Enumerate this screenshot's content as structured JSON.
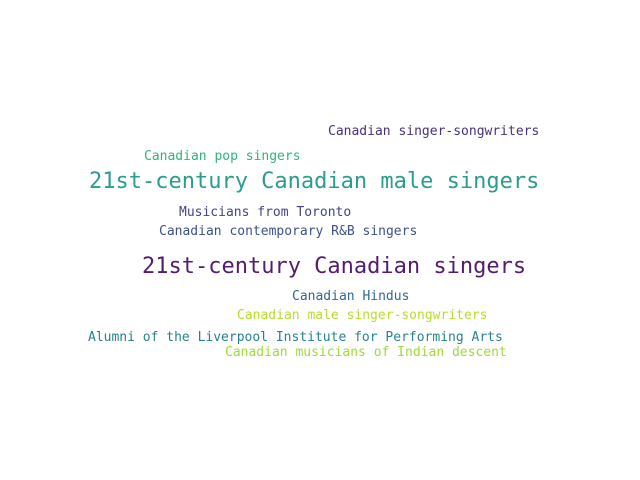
{
  "words": [
    {
      "text": "Canadian singer-songwriters",
      "color": "#46327e"
    },
    {
      "text": "Canadian pop singers",
      "color": "#2fb47c"
    },
    {
      "text": "21st-century Canadian male singers",
      "color": "#2a9d8f"
    },
    {
      "text": "Musicians from Toronto",
      "color": "#414487"
    },
    {
      "text": "Canadian contemporary R&B singers",
      "color": "#3b528b"
    },
    {
      "text": "21st-century Canadian singers",
      "color": "#541c6d"
    },
    {
      "text": "Canadian Hindus",
      "color": "#31688e"
    },
    {
      "text": "Canadian male singer-songwriters",
      "color": "#b5de2b"
    },
    {
      "text": "Alumni of the Liverpool Institute for Performing Arts",
      "color": "#26828e"
    },
    {
      "text": "Canadian musicians of Indian descent",
      "color": "#a0da39"
    }
  ]
}
